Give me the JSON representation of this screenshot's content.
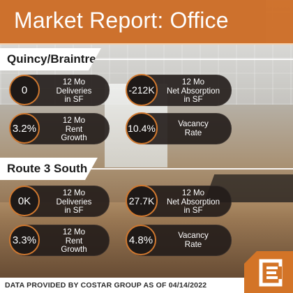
{
  "title": "Market Report: Office",
  "sections": [
    {
      "name": "Quincy/Braintree",
      "stats": [
        {
          "value": "0",
          "label_lines": [
            "12 Mo",
            "Deliveries",
            "in SF"
          ]
        },
        {
          "value": "-212K",
          "label_lines": [
            "12 Mo",
            "Net Absorption",
            "in SF"
          ]
        },
        {
          "value": "3.2%",
          "label_lines": [
            "12 Mo",
            "Rent",
            "Growth"
          ]
        },
        {
          "value": "10.4%",
          "label_lines": [
            "Vacancy",
            "Rate"
          ]
        }
      ]
    },
    {
      "name": "Route 3 South",
      "stats": [
        {
          "value": "0K",
          "label_lines": [
            "12 Mo",
            "Deliveries",
            "in SF"
          ]
        },
        {
          "value": "27.7K",
          "label_lines": [
            "12 Mo",
            "Net Absorption",
            "in SF"
          ]
        },
        {
          "value": "3.3%",
          "label_lines": [
            "12 Mo",
            "Rent",
            "Growth"
          ]
        },
        {
          "value": "4.8%",
          "label_lines": [
            "Vacancy",
            "Rate"
          ]
        }
      ]
    }
  ],
  "footer": "DATA PROVIDED BY COSTAR GROUP AS OF 04/14/2022",
  "colors": {
    "accent": "#cd6e28",
    "pill_bg": "#221c1a",
    "text": "#ffffff"
  },
  "logo_icon": "ce-logo-icon"
}
